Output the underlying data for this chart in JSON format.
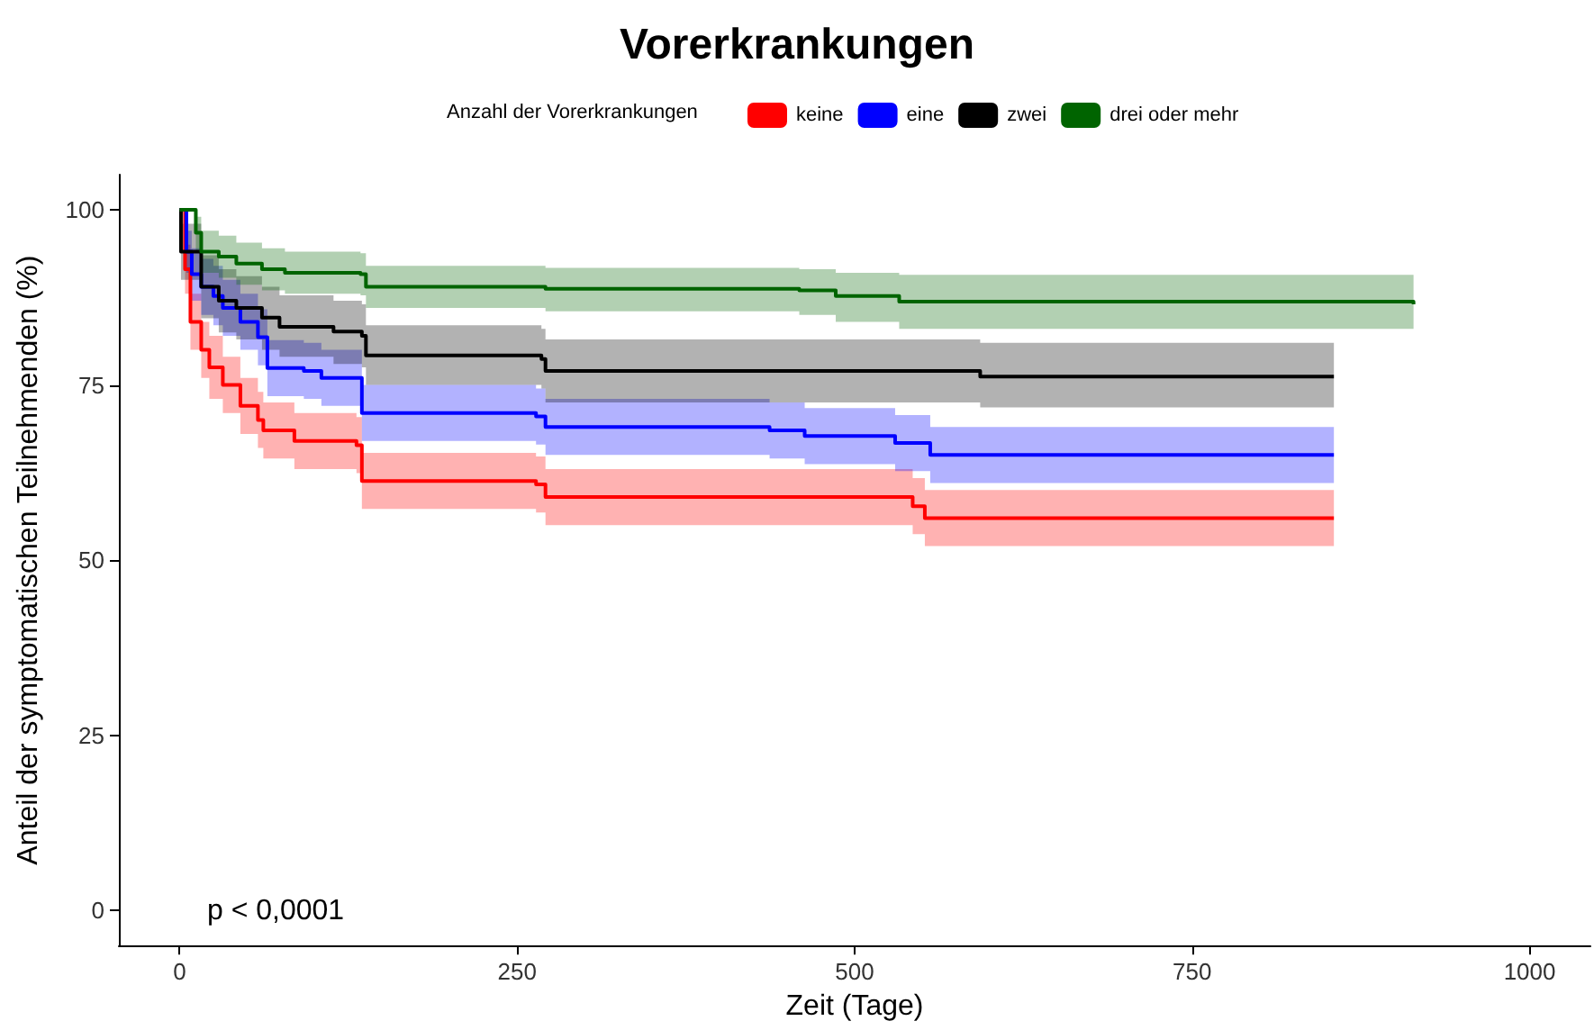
{
  "chart_data": {
    "type": "step",
    "title": "Vorerkrankungen",
    "legend_title": "Anzahl der Vorerkrankungen",
    "xlabel": "Zeit (Tage)",
    "ylabel": "Anteil der symptomatischen Teilnehmenden (%)",
    "annotations": [
      "p < 0,0001"
    ],
    "xlim": [
      -45,
      1045
    ],
    "xticks": [
      0,
      250,
      500,
      750,
      1000
    ],
    "ylim": [
      -5,
      105
    ],
    "yticks": [
      0,
      25,
      50,
      75,
      100
    ],
    "grid": false,
    "legend": "top",
    "series": [
      {
        "name": "keine",
        "color": "#ff0000",
        "x": [
          0,
          4,
          8,
          16,
          22,
          32,
          45,
          58,
          62,
          85,
          131,
          135,
          264,
          271,
          543,
          552,
          855
        ],
        "values": [
          100,
          91.5,
          84,
          80,
          77.5,
          75,
          72,
          70,
          68.5,
          67,
          66.4,
          61.3,
          60.8,
          59,
          57.7,
          56,
          56
        ],
        "lower": [
          100,
          88,
          80,
          76,
          73,
          71,
          68,
          66,
          64.5,
          63,
          62.4,
          57.3,
          56.8,
          55,
          53.7,
          52,
          52
        ],
        "upper": [
          100,
          95,
          88,
          84,
          82,
          79,
          76,
          74,
          72.5,
          71,
          70.4,
          65.3,
          64.8,
          63,
          61.7,
          60,
          60
        ]
      },
      {
        "name": "eine",
        "color": "#0000ff",
        "x": [
          0,
          5,
          9,
          16,
          25,
          32,
          45,
          58,
          65,
          92,
          105,
          135,
          264,
          271,
          437,
          463,
          530,
          556,
          855
        ],
        "values": [
          100,
          94,
          90.8,
          89,
          87.7,
          86,
          84,
          81.8,
          77.4,
          77,
          76,
          71,
          70.5,
          69,
          68.5,
          67.7,
          66.7,
          65,
          65
        ],
        "lower": [
          100,
          91,
          87,
          85,
          83.5,
          82,
          80,
          77.8,
          73.4,
          73,
          72,
          67,
          66.5,
          65,
          64.5,
          63.7,
          62.7,
          61,
          61
        ],
        "upper": [
          100,
          97,
          94.5,
          93,
          92,
          90,
          88,
          85.8,
          81.4,
          81,
          80,
          75,
          74.5,
          73,
          72.5,
          71.7,
          70.7,
          69,
          69
        ]
      },
      {
        "name": "zwei",
        "color": "#000000",
        "x": [
          0,
          1,
          16,
          29,
          42,
          61,
          74,
          114,
          135,
          138,
          268,
          271,
          593,
          855
        ],
        "values": [
          100,
          94,
          89,
          87,
          86,
          84.6,
          83.3,
          82.6,
          82,
          79.2,
          78.7,
          77,
          76.2,
          76.2
        ],
        "lower": [
          100,
          90,
          84.5,
          82.5,
          81.5,
          80,
          79,
          78,
          77.5,
          75,
          74.5,
          72.5,
          71.8,
          71.8
        ],
        "upper": [
          100,
          98,
          93.5,
          91.5,
          90.5,
          89,
          87.8,
          87,
          86.5,
          83.5,
          83,
          81.5,
          81,
          81
        ]
      },
      {
        "name": "drei oder mehr",
        "color": "#006400",
        "x": [
          0,
          12,
          16,
          29,
          42,
          61,
          78,
          134,
          138,
          271,
          459,
          486,
          533,
          914
        ],
        "values": [
          100,
          96.7,
          94,
          93.3,
          92.3,
          91.5,
          91,
          90.8,
          89,
          88.7,
          88.5,
          87.7,
          86.9,
          86.5
        ],
        "lower": [
          100,
          94,
          91,
          90.3,
          89.3,
          88.5,
          88,
          87.8,
          86,
          85.5,
          85,
          84,
          83,
          82.3
        ],
        "upper": [
          100,
          99,
          97,
          96.3,
          95.3,
          94.5,
          94,
          93.8,
          92,
          91.7,
          91.5,
          91,
          90.7,
          91.5
        ]
      }
    ]
  }
}
